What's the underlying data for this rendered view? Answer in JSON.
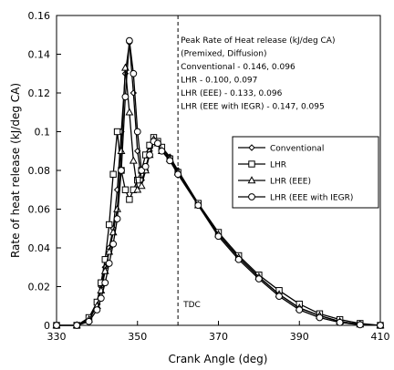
{
  "chart_data": {
    "type": "line",
    "title": "",
    "xlabel": "Crank Angle (deg)",
    "ylabel": "Rate of heat release (kJ/deg CA)",
    "xlim": [
      330,
      410
    ],
    "ylim": [
      0,
      0.16
    ],
    "xticks": [
      "330",
      "350",
      "370",
      "390",
      "410"
    ],
    "yticks": [
      "0",
      "0.02",
      "0.04",
      "0.06",
      "0.08",
      "0.1",
      "0.12",
      "0.14",
      "0.16"
    ],
    "grid": false,
    "legend_position": "right-middle",
    "tdc": {
      "x": 360,
      "label": "TDC"
    },
    "annotation_lines": [
      "Peak Rate of Heat release (kJ/deg CA)",
      "(Premixed, Diffusion)",
      "Conventional - 0.146, 0.096",
      "LHR - 0.100, 0.097",
      "LHR (EEE) - 0.133, 0.096",
      "LHR (EEE with IEGR) - 0.147, 0.095"
    ],
    "series": [
      {
        "name": "Conventional",
        "marker": "diamond",
        "points": [
          [
            330,
            0
          ],
          [
            335,
            0
          ],
          [
            338,
            0.002
          ],
          [
            340,
            0.012
          ],
          [
            341,
            0.02
          ],
          [
            342,
            0.03
          ],
          [
            343,
            0.04
          ],
          [
            344,
            0.05
          ],
          [
            345,
            0.07
          ],
          [
            346,
            0.1
          ],
          [
            347,
            0.13
          ],
          [
            348,
            0.146
          ],
          [
            349,
            0.12
          ],
          [
            350,
            0.09
          ],
          [
            351,
            0.075
          ],
          [
            352,
            0.08
          ],
          [
            353,
            0.09
          ],
          [
            354,
            0.096
          ],
          [
            355,
            0.095
          ],
          [
            356,
            0.092
          ],
          [
            358,
            0.087
          ],
          [
            360,
            0.08
          ],
          [
            365,
            0.063
          ],
          [
            370,
            0.047
          ],
          [
            375,
            0.035
          ],
          [
            380,
            0.025
          ],
          [
            385,
            0.016
          ],
          [
            390,
            0.009
          ],
          [
            395,
            0.005
          ],
          [
            400,
            0.002
          ],
          [
            405,
            0.0005
          ],
          [
            410,
            0
          ]
        ]
      },
      {
        "name": "LHR",
        "marker": "square",
        "points": [
          [
            330,
            0
          ],
          [
            335,
            0
          ],
          [
            338,
            0.004
          ],
          [
            340,
            0.012
          ],
          [
            341,
            0.022
          ],
          [
            342,
            0.034
          ],
          [
            343,
            0.052
          ],
          [
            344,
            0.078
          ],
          [
            345,
            0.1
          ],
          [
            346,
            0.08
          ],
          [
            347,
            0.07
          ],
          [
            348,
            0.065
          ],
          [
            349,
            0.07
          ],
          [
            350,
            0.075
          ],
          [
            351,
            0.08
          ],
          [
            352,
            0.088
          ],
          [
            353,
            0.093
          ],
          [
            354,
            0.097
          ],
          [
            355,
            0.095
          ],
          [
            356,
            0.092
          ],
          [
            358,
            0.086
          ],
          [
            360,
            0.079
          ],
          [
            365,
            0.063
          ],
          [
            370,
            0.048
          ],
          [
            375,
            0.036
          ],
          [
            380,
            0.026
          ],
          [
            385,
            0.018
          ],
          [
            390,
            0.011
          ],
          [
            395,
            0.006
          ],
          [
            400,
            0.003
          ],
          [
            405,
            0.001
          ],
          [
            410,
            0
          ]
        ]
      },
      {
        "name": "LHR (EEE)",
        "marker": "triangle",
        "points": [
          [
            330,
            0
          ],
          [
            335,
            0
          ],
          [
            338,
            0.003
          ],
          [
            340,
            0.01
          ],
          [
            341,
            0.018
          ],
          [
            342,
            0.028
          ],
          [
            343,
            0.038
          ],
          [
            344,
            0.048
          ],
          [
            345,
            0.06
          ],
          [
            346,
            0.09
          ],
          [
            347,
            0.133
          ],
          [
            348,
            0.11
          ],
          [
            349,
            0.085
          ],
          [
            350,
            0.07
          ],
          [
            351,
            0.072
          ],
          [
            352,
            0.08
          ],
          [
            353,
            0.088
          ],
          [
            354,
            0.096
          ],
          [
            355,
            0.094
          ],
          [
            356,
            0.09
          ],
          [
            358,
            0.086
          ],
          [
            360,
            0.079
          ],
          [
            365,
            0.062
          ],
          [
            370,
            0.047
          ],
          [
            375,
            0.035
          ],
          [
            380,
            0.025
          ],
          [
            385,
            0.016
          ],
          [
            390,
            0.009
          ],
          [
            395,
            0.005
          ],
          [
            400,
            0.002
          ],
          [
            405,
            0.0005
          ],
          [
            410,
            0
          ]
        ]
      },
      {
        "name": "LHR (EEE with IEGR)",
        "marker": "circle",
        "points": [
          [
            330,
            0
          ],
          [
            335,
            0
          ],
          [
            338,
            0.002
          ],
          [
            340,
            0.008
          ],
          [
            341,
            0.014
          ],
          [
            342,
            0.022
          ],
          [
            343,
            0.032
          ],
          [
            344,
            0.042
          ],
          [
            345,
            0.055
          ],
          [
            346,
            0.08
          ],
          [
            347,
            0.118
          ],
          [
            348,
            0.147
          ],
          [
            349,
            0.13
          ],
          [
            350,
            0.1
          ],
          [
            351,
            0.08
          ],
          [
            352,
            0.082
          ],
          [
            353,
            0.088
          ],
          [
            354,
            0.095
          ],
          [
            355,
            0.094
          ],
          [
            356,
            0.09
          ],
          [
            358,
            0.085
          ],
          [
            360,
            0.078
          ],
          [
            365,
            0.062
          ],
          [
            370,
            0.046
          ],
          [
            375,
            0.034
          ],
          [
            380,
            0.024
          ],
          [
            385,
            0.015
          ],
          [
            390,
            0.008
          ],
          [
            395,
            0.004
          ],
          [
            400,
            0.0015
          ],
          [
            405,
            0.0003
          ],
          [
            410,
            0
          ]
        ]
      }
    ]
  }
}
